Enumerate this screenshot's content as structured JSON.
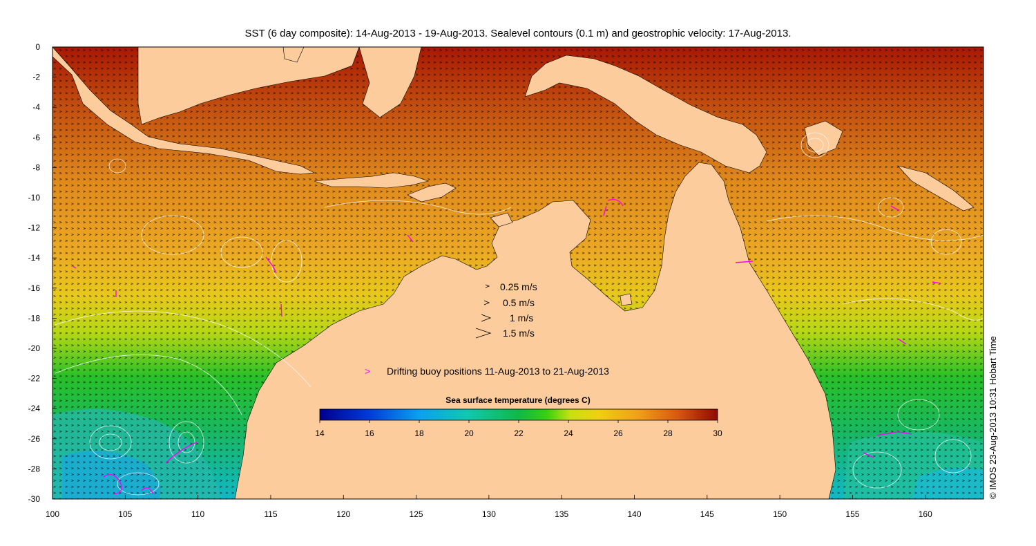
{
  "figure": {
    "title": "SST (6 day composite): 14-Aug-2013 - 19-Aug-2013. Sealevel contours (0.1 m) and geostrophic velocity: 17-Aug-2013.",
    "credit": "© IMOS 23-Aug-2013 10:31 Hobart Time"
  },
  "legend": {
    "velocity_scale": [
      {
        "label": "0.25 m/s",
        "speed": 0.25
      },
      {
        "label": "0.5 m/s",
        "speed": 0.5
      },
      {
        "label": "1 m/s",
        "speed": 1
      },
      {
        "label": "1.5 m/s",
        "speed": 1.5
      }
    ],
    "buoy_symbol": ">",
    "buoy_label": "Drifting buoy positions 11-Aug-2013 to 21-Aug-2013",
    "buoy_color": "#ff00ff"
  },
  "colorbar": {
    "label": "Sea surface temperature (degrees C)",
    "min": 14,
    "max": 30,
    "ticks": [
      "14",
      "16",
      "18",
      "20",
      "22",
      "24",
      "26",
      "28",
      "30"
    ]
  },
  "colors": {
    "land": "#fccc9c",
    "vector": "#000000",
    "contour": "#ffffff"
  },
  "chart_data": {
    "type": "heatmap",
    "title": "SST (6 day composite): 14-Aug-2013 - 19-Aug-2013. Sealevel contours (0.1 m) and geostrophic velocity: 17-Aug-2013.",
    "x_range": [
      100,
      164
    ],
    "y_range": [
      -30,
      0
    ],
    "x_ticks": [
      "100",
      "105",
      "110",
      "115",
      "120",
      "125",
      "130",
      "135",
      "140",
      "145",
      "150",
      "155",
      "160"
    ],
    "y_ticks": [
      "0",
      "-2",
      "-4",
      "-6",
      "-8",
      "-10",
      "-12",
      "-14",
      "-16",
      "-18",
      "-20",
      "-22",
      "-24",
      "-26",
      "-28",
      "-30"
    ],
    "grid": false,
    "colorbar_range": [
      14,
      30
    ]
  }
}
